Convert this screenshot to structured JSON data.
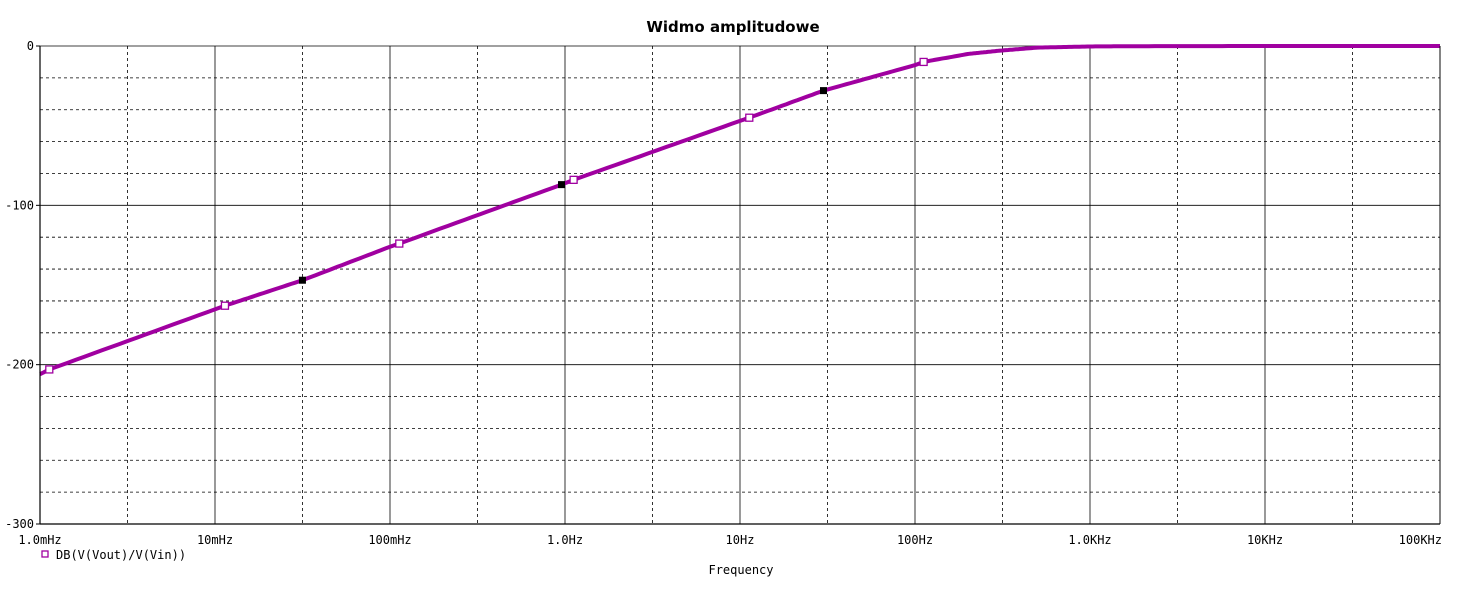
{
  "chart_data": {
    "type": "line",
    "title": "Widmo amplitudowe",
    "xlabel": "Frequency",
    "ylabel": "",
    "xscale": "log",
    "xlim": [
      0.001,
      100000
    ],
    "ylim": [
      -300,
      0
    ],
    "x_ticks": [
      {
        "value": 0.001,
        "label": "1.0mHz"
      },
      {
        "value": 0.01,
        "label": "10mHz"
      },
      {
        "value": 0.1,
        "label": "100mHz"
      },
      {
        "value": 1,
        "label": "1.0Hz"
      },
      {
        "value": 10,
        "label": "10Hz"
      },
      {
        "value": 100,
        "label": "100Hz"
      },
      {
        "value": 1000,
        "label": "1.0KHz"
      },
      {
        "value": 10000,
        "label": "10KHz"
      },
      {
        "value": 100000,
        "label": "100KHz"
      }
    ],
    "y_ticks": [
      {
        "value": 0,
        "label": "0"
      },
      {
        "value": -100,
        "label": "-100"
      },
      {
        "value": -200,
        "label": "-200"
      },
      {
        "value": -300,
        "label": "-300"
      }
    ],
    "grid": true,
    "legend_position": "bottom-left",
    "series": [
      {
        "name": "DB(V(Vout)/V(Vin))",
        "color": "#a000a0",
        "x": [
          0.001,
          0.00113,
          0.0114,
          0.0316,
          0.1,
          0.113,
          0.955,
          1.12,
          10,
          11.3,
          30,
          100,
          112,
          200,
          300,
          500,
          1000,
          2000,
          10000,
          100000
        ],
        "y": [
          -206,
          -203,
          -163,
          -147,
          -126,
          -124,
          -87,
          -84,
          -47,
          -45,
          -28,
          -12,
          -10,
          -5,
          -3,
          -1,
          -0.3,
          -0.1,
          0,
          0
        ],
        "open_markers_x": [
          0.00113,
          0.0114,
          0.113,
          1.12,
          11.3,
          112
        ],
        "open_markers_y": [
          -203,
          -163,
          -124,
          -84,
          -45,
          -10
        ],
        "filled_markers_x": [
          0.0316,
          0.955,
          30
        ],
        "filled_markers_y": [
          -147,
          -87,
          -28
        ]
      }
    ]
  }
}
